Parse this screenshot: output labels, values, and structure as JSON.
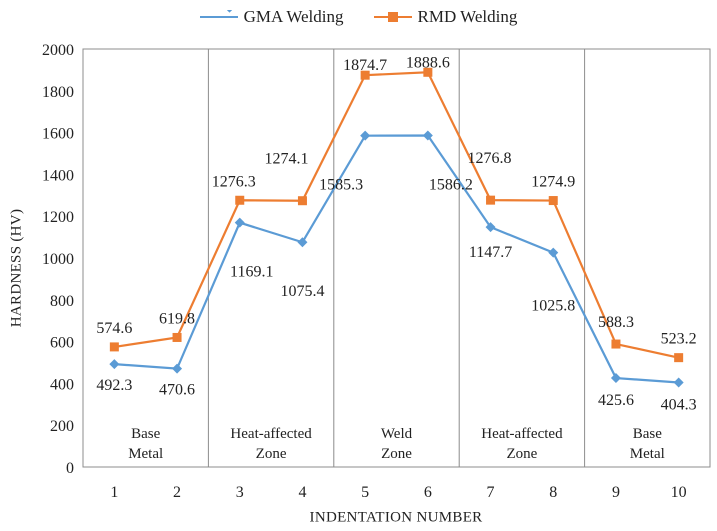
{
  "chart_data": {
    "type": "line",
    "title": "",
    "xlabel": "INDENTATION NUMBER",
    "ylabel": "HARDNESS (HV)",
    "ylim": [
      0,
      2000
    ],
    "yticks": [
      "0",
      "200",
      "400",
      "600",
      "800",
      "1000",
      "1200",
      "1400",
      "1600",
      "1800",
      "2000"
    ],
    "categories": [
      "1",
      "2",
      "3",
      "4",
      "5",
      "6",
      "7",
      "8",
      "9",
      "10"
    ],
    "series": [
      {
        "name": "GMA Welding",
        "color": "#5B9BD5",
        "marker": "diamond",
        "values": [
          492.3,
          470.6,
          1169.1,
          1075.4,
          1585.3,
          1586.2,
          1147.7,
          1025.8,
          425.6,
          404.3
        ],
        "labels": [
          "492.3",
          "470.6",
          "1169.1",
          "1075.4",
          "1585.3",
          "1586.2",
          "1147.7",
          "1025.8",
          "425.6",
          "404.3"
        ]
      },
      {
        "name": "RMD Welding",
        "color": "#ED7D31",
        "marker": "square",
        "values": [
          574.6,
          619.8,
          1276.3,
          1274.1,
          1874.7,
          1888.6,
          1276.8,
          1274.9,
          588.3,
          523.2
        ],
        "labels": [
          "574.6",
          "619.8",
          "1276.3",
          "1274.1",
          "1874.7",
          "1888.6",
          "1276.8",
          "1274.9",
          "588.3",
          "523.2"
        ]
      }
    ],
    "zones": [
      {
        "lines": [
          "Base",
          "Metal"
        ],
        "from": 1,
        "to": 2
      },
      {
        "lines": [
          "Heat-affected",
          "Zone"
        ],
        "from": 3,
        "to": 4
      },
      {
        "lines": [
          "Weld",
          "Zone"
        ],
        "from": 5,
        "to": 6
      },
      {
        "lines": [
          "Heat-affected",
          "Zone"
        ],
        "from": 7,
        "to": 8
      },
      {
        "lines": [
          "Base",
          "Metal"
        ],
        "from": 9,
        "to": 10
      }
    ],
    "legend_position": "top",
    "grid": false
  }
}
